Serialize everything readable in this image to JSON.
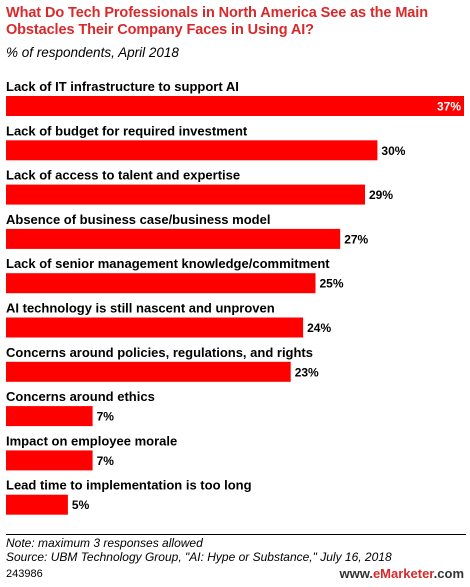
{
  "header": {
    "title": "What Do Tech Professionals in North America See as the Main Obstacles Their Company Faces in Using AI?",
    "subtitle": "% of respondents, April 2018"
  },
  "chart_data": {
    "type": "bar",
    "orientation": "horizontal",
    "title": "What Do Tech Professionals in North America See as the Main Obstacles Their Company Faces in Using AI?",
    "subtitle": "% of respondents, April 2018",
    "categories": [
      "Lack of IT infrastructure to support AI",
      "Lack of budget for required investment",
      "Lack of access to talent and expertise",
      "Absence of business case/business model",
      "Lack of senior management knowledge/commitment",
      "AI technology is still nascent and unproven",
      "Concerns around policies, regulations, and rights",
      "Concerns around ethics",
      "Impact on employee morale",
      "Lead time to implementation is too long"
    ],
    "values": [
      37,
      30,
      29,
      27,
      25,
      24,
      23,
      7,
      7,
      5
    ],
    "value_labels": [
      "37%",
      "30%",
      "29%",
      "27%",
      "25%",
      "24%",
      "23%",
      "7%",
      "7%",
      "5%"
    ],
    "xlim": [
      0,
      37
    ],
    "bar_color": "#ff0000",
    "grid": false,
    "legend": "none"
  },
  "footer": {
    "note": "Note: maximum 3 responses allowed",
    "source": "Source: UBM Technology Group, \"AI: Hype or Substance,\" July 16, 2018",
    "chart_id": "243986",
    "brand_prefix": "www.",
    "brand_name": "eMarketer",
    "brand_suffix": ".com"
  },
  "colors": {
    "accent": "#d9292a",
    "bar": "#ff0000"
  }
}
